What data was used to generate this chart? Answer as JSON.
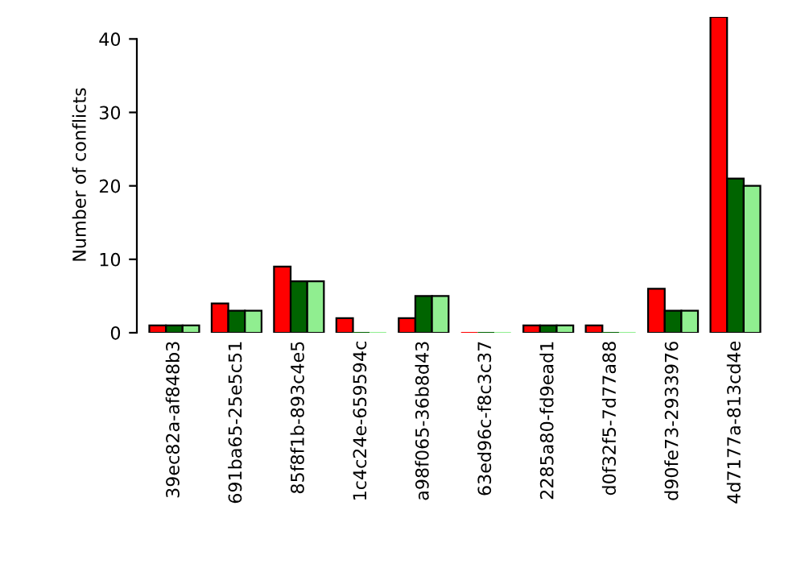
{
  "chart_data": {
    "type": "bar",
    "ylabel": "Number of conflicts",
    "categories": [
      "39ec82a-af848b3",
      "691ba65-25e5c51",
      "85f8f1b-893c4e5",
      "1c4c24e-659594c",
      "a98f065-36b8d43",
      "63ed96c-f8c3c37",
      "2285a80-fd9ead1",
      "d0f32f5-7d77a88",
      "d90fe73-2933976",
      "4d7177a-813cd4e"
    ],
    "series": [
      {
        "color": "#ff0000",
        "values": [
          1,
          4,
          9,
          2,
          2,
          0,
          1,
          1,
          6,
          43
        ]
      },
      {
        "color": "#006400",
        "values": [
          1,
          3,
          7,
          0,
          5,
          0,
          1,
          0,
          3,
          21
        ]
      },
      {
        "color": "#90ee90",
        "values": [
          1,
          3,
          7,
          0,
          5,
          0,
          1,
          0,
          3,
          20
        ]
      }
    ],
    "ylim": [
      0,
      43
    ],
    "yticks": [
      0,
      10,
      20,
      30,
      40
    ],
    "grid": false,
    "legend": false
  }
}
